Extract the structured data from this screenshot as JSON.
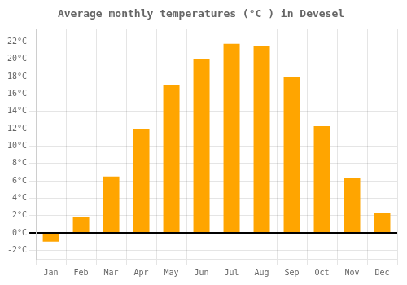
{
  "chart_data": {
    "type": "bar",
    "title": "Average monthly temperatures (°C ) in Devesel",
    "categories": [
      "Jan",
      "Feb",
      "Mar",
      "Apr",
      "May",
      "Jun",
      "Jul",
      "Aug",
      "Sep",
      "Oct",
      "Nov",
      "Dec"
    ],
    "values": [
      -1.0,
      1.8,
      6.5,
      12.0,
      17.0,
      20.0,
      21.8,
      21.5,
      18.0,
      12.3,
      6.3,
      2.3
    ],
    "color": "#FFA500",
    "ylim": [
      -3.0,
      23.5
    ],
    "yticks": [
      {
        "value": -2,
        "label": "-2°C"
      },
      {
        "value": 0,
        "label": "0°C"
      },
      {
        "value": 2,
        "label": "2°C"
      },
      {
        "value": 4,
        "label": "4°C"
      },
      {
        "value": 6,
        "label": "6°C"
      },
      {
        "value": 8,
        "label": "8°C"
      },
      {
        "value": 10,
        "label": "10°C"
      },
      {
        "value": 12,
        "label": "12°C"
      },
      {
        "value": 14,
        "label": "14°C"
      },
      {
        "value": 16,
        "label": "16°C"
      },
      {
        "value": 18,
        "label": "18°C"
      },
      {
        "value": 20,
        "label": "20°C"
      },
      {
        "value": 22,
        "label": "22°C"
      }
    ],
    "grid": true
  }
}
